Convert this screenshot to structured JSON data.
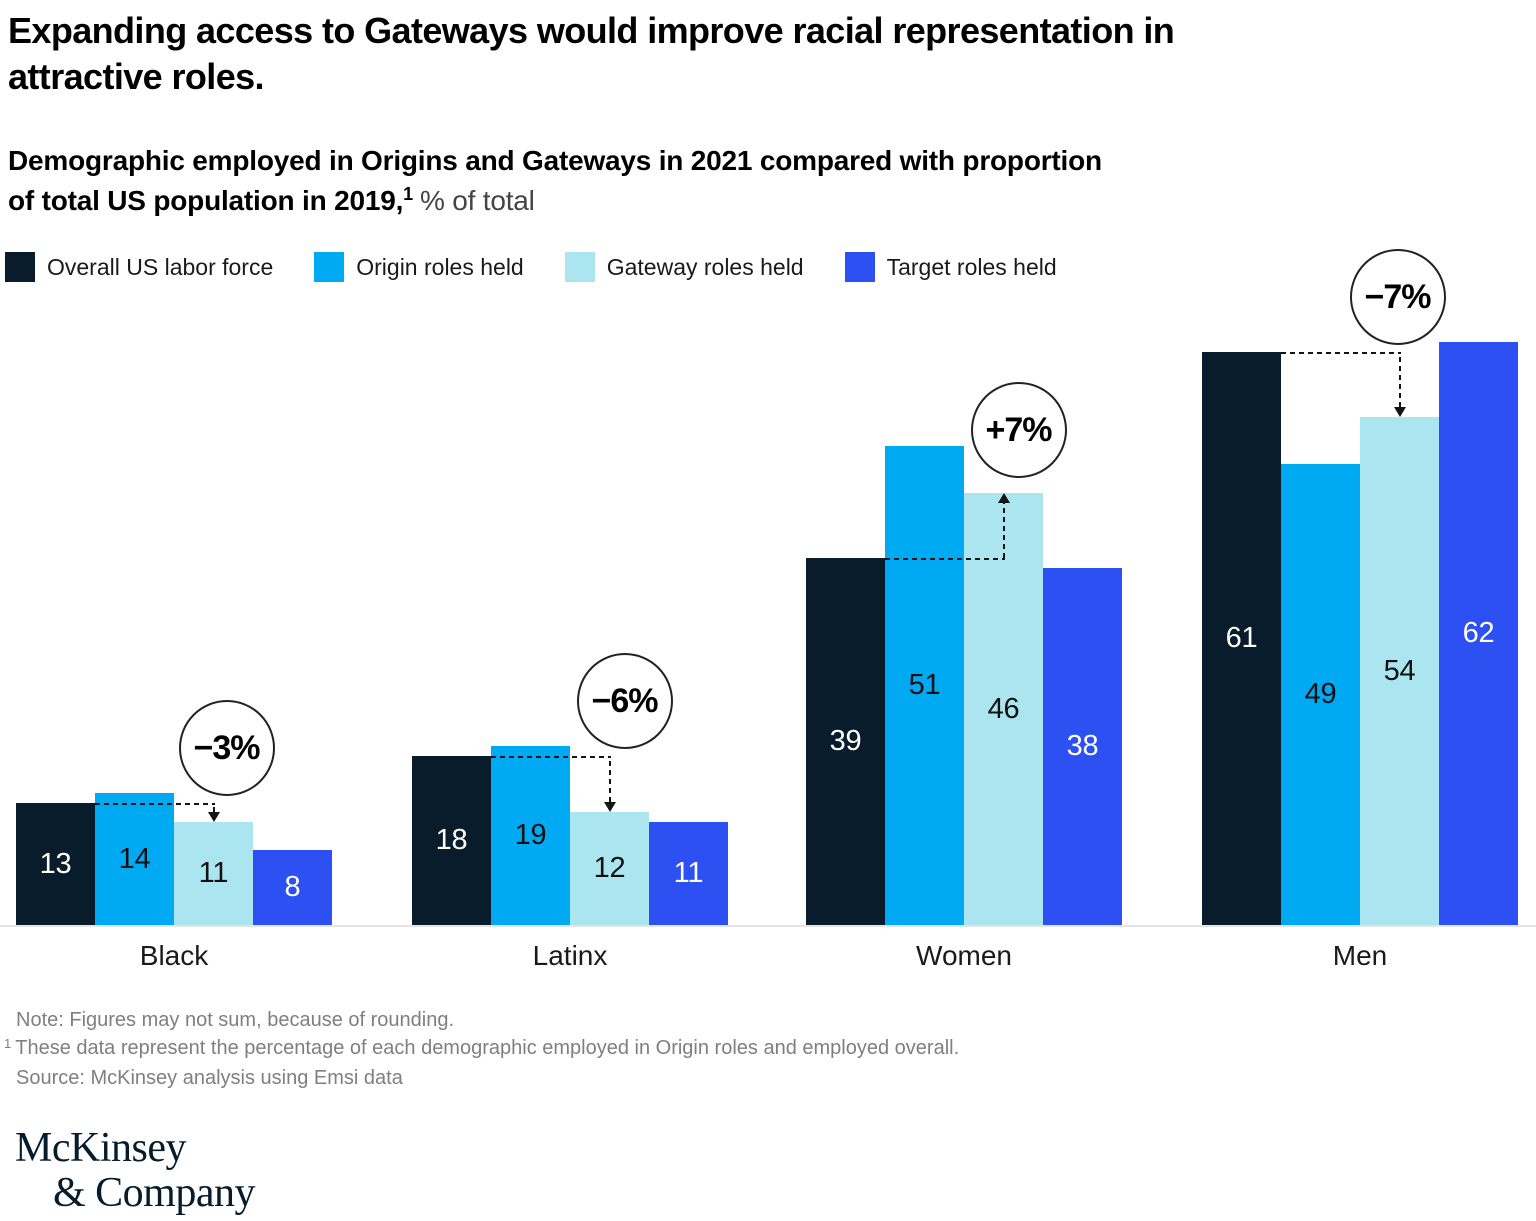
{
  "title": {
    "line1": "Expanding access to Gateways would improve racial representation in",
    "line2": "attractive roles."
  },
  "subtitle": {
    "line1_bold": "Demographic employed in Origins and Gateways in 2021 compared with proportion",
    "line2_bold": "of total US population in 2019,",
    "footnote_marker": "1",
    "line2_regular": "% of total"
  },
  "chart_data": {
    "type": "bar",
    "unit": "% of total",
    "categories": [
      "Black",
      "Latinx",
      "Women",
      "Men"
    ],
    "series": [
      {
        "name": "Overall US labor force",
        "color": "#081C2C",
        "label_color": "#FFFFFF",
        "values": [
          13,
          18,
          39,
          61
        ]
      },
      {
        "name": "Origin roles held",
        "color": "#00AAF2",
        "label_color": "#111111",
        "values": [
          14,
          19,
          51,
          49
        ]
      },
      {
        "name": "Gateway roles held",
        "color": "#ABE5F0",
        "label_color": "#111111",
        "values": [
          11,
          12,
          46,
          54
        ]
      },
      {
        "name": "Target roles held",
        "color": "#2D50F2",
        "label_color": "#FFFFFF",
        "values": [
          8,
          11,
          38,
          62
        ]
      }
    ],
    "annotations": [
      {
        "category": "Black",
        "label": "−3%",
        "from_series": "Overall US labor force",
        "to_series": "Gateway roles held",
        "direction": "down"
      },
      {
        "category": "Latinx",
        "label": "−6%",
        "from_series": "Overall US labor force",
        "to_series": "Gateway roles held",
        "direction": "down"
      },
      {
        "category": "Women",
        "label": "+7%",
        "from_series": "Overall US labor force",
        "to_series": "Gateway roles held",
        "direction": "up"
      },
      {
        "category": "Men",
        "label": "−7%",
        "from_series": "Overall US labor force",
        "to_series": "Gateway roles held",
        "direction": "down"
      }
    ],
    "value_labels": true,
    "y_axis_visible": false,
    "ylim": [
      0,
      65
    ],
    "grid": false,
    "legend_position": "top"
  },
  "footnotes": {
    "note": "Note: Figures may not sum, because of rounding.",
    "footnote_marker": "1",
    "footnote_text": "These data represent the percentage of each demographic employed in Origin roles and employed overall.",
    "source": "Source: McKinsey analysis using Emsi data"
  },
  "logo": {
    "line1": "McKinsey",
    "line2": "& Company"
  }
}
